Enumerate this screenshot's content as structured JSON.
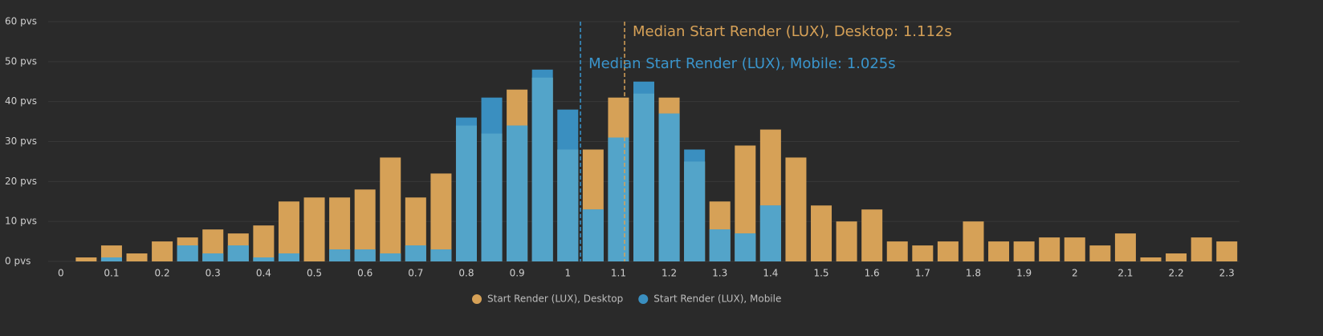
{
  "chart_data": {
    "type": "bar",
    "x": [
      0.05,
      0.1,
      0.15,
      0.2,
      0.25,
      0.3,
      0.35,
      0.4,
      0.45,
      0.5,
      0.55,
      0.6,
      0.65,
      0.7,
      0.75,
      0.8,
      0.85,
      0.9,
      0.95,
      1,
      1.05,
      1.1,
      1.15,
      1.2,
      1.25,
      1.3,
      1.35,
      1.4,
      1.45,
      1.5,
      1.55,
      1.6,
      1.65,
      1.7,
      1.75,
      1.8,
      1.85,
      1.9,
      1.95,
      2,
      2.05,
      2.1,
      2.15,
      2.2,
      2.25,
      2.3
    ],
    "series": [
      {
        "name": "Start Render (LUX), Desktop",
        "color": "#d6a157",
        "values": [
          1,
          4,
          2,
          5,
          6,
          8,
          7,
          9,
          15,
          16,
          16,
          18,
          26,
          16,
          22,
          34,
          32,
          43,
          46,
          28,
          28,
          41,
          42,
          41,
          25,
          15,
          29,
          33,
          26,
          14,
          10,
          13,
          5,
          4,
          5,
          10,
          5,
          5,
          6,
          6,
          4,
          7,
          1,
          2,
          6,
          5
        ]
      },
      {
        "name": "Start Render (LUX), Mobile",
        "color": "#3a8fc0",
        "values": [
          0,
          1,
          0,
          0,
          4,
          2,
          4,
          1,
          2,
          0,
          3,
          3,
          2,
          4,
          3,
          36,
          41,
          34,
          48,
          38,
          13,
          31,
          45,
          37,
          28,
          8,
          7,
          14,
          0,
          0,
          0,
          0,
          0,
          0,
          0,
          0,
          0,
          0,
          0,
          0,
          0,
          0,
          0,
          0,
          0,
          0
        ]
      }
    ],
    "overlap_color": "#53a4c9",
    "annotations": [
      {
        "text": "Median Start Render (LUX), Desktop: 1.112s",
        "value": 1.112,
        "color": "#d6a157"
      },
      {
        "text": "Median Start Render (LUX), Mobile: 1.025s",
        "value": 1.025,
        "color": "#3a95cc"
      }
    ],
    "xlim": [
      -0.025,
      2.325
    ],
    "xticks": [
      0,
      0.1,
      0.2,
      0.3,
      0.4,
      0.5,
      0.6,
      0.7,
      0.8,
      0.9,
      1,
      1.1,
      1.2,
      1.3,
      1.4,
      1.5,
      1.6,
      1.7,
      1.8,
      1.9,
      2,
      2.1,
      2.2,
      2.3
    ],
    "ylim": [
      0,
      60
    ],
    "yticks": [
      {
        "value": 0,
        "label": "0 pvs"
      },
      {
        "value": 10,
        "label": "10 pvs"
      },
      {
        "value": 20,
        "label": "20 pvs"
      },
      {
        "value": 30,
        "label": "30 pvs"
      },
      {
        "value": 40,
        "label": "40 pvs"
      },
      {
        "value": 50,
        "label": "50 pvs"
      },
      {
        "value": 60,
        "label": "60 pvs"
      }
    ],
    "grid": true,
    "legend": "bottom"
  }
}
